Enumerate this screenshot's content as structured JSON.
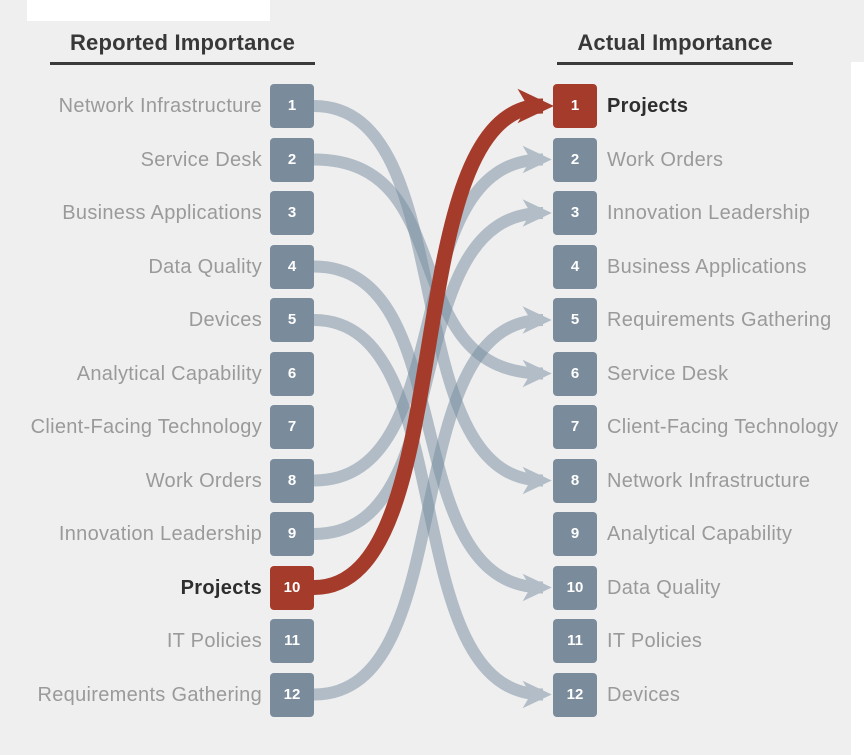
{
  "header": {
    "left_title": "Reported Importance",
    "right_title": "Actual Importance"
  },
  "left_items": [
    {
      "rank": "1",
      "label": "Network Infrastructure",
      "highlight": false
    },
    {
      "rank": "2",
      "label": "Service Desk",
      "highlight": false
    },
    {
      "rank": "3",
      "label": "Business Applications",
      "highlight": false
    },
    {
      "rank": "4",
      "label": "Data Quality",
      "highlight": false
    },
    {
      "rank": "5",
      "label": "Devices",
      "highlight": false
    },
    {
      "rank": "6",
      "label": "Analytical Capability",
      "highlight": false
    },
    {
      "rank": "7",
      "label": "Client-Facing Technology",
      "highlight": false
    },
    {
      "rank": "8",
      "label": "Work Orders",
      "highlight": false
    },
    {
      "rank": "9",
      "label": "Innovation Leadership",
      "highlight": false
    },
    {
      "rank": "10",
      "label": "Projects",
      "highlight": true
    },
    {
      "rank": "11",
      "label": "IT Policies",
      "highlight": false
    },
    {
      "rank": "12",
      "label": "Requirements Gathering",
      "highlight": false
    }
  ],
  "right_items": [
    {
      "rank": "1",
      "label": "Projects",
      "highlight": true
    },
    {
      "rank": "2",
      "label": "Work Orders",
      "highlight": false
    },
    {
      "rank": "3",
      "label": "Innovation Leadership",
      "highlight": false
    },
    {
      "rank": "4",
      "label": "Business Applications",
      "highlight": false
    },
    {
      "rank": "5",
      "label": "Requirements Gathering",
      "highlight": false
    },
    {
      "rank": "6",
      "label": "Service Desk",
      "highlight": false
    },
    {
      "rank": "7",
      "label": "Client-Facing Technology",
      "highlight": false
    },
    {
      "rank": "8",
      "label": "Network Infrastructure",
      "highlight": false
    },
    {
      "rank": "9",
      "label": "Analytical Capability",
      "highlight": false
    },
    {
      "rank": "10",
      "label": "Data Quality",
      "highlight": false
    },
    {
      "rank": "11",
      "label": "IT Policies",
      "highlight": false
    },
    {
      "rank": "12",
      "label": "Devices",
      "highlight": false
    }
  ],
  "connections": [
    {
      "from_rank": 1,
      "to_rank": 8,
      "highlight": false
    },
    {
      "from_rank": 2,
      "to_rank": 6,
      "highlight": false
    },
    {
      "from_rank": 4,
      "to_rank": 10,
      "highlight": false
    },
    {
      "from_rank": 5,
      "to_rank": 12,
      "highlight": false
    },
    {
      "from_rank": 8,
      "to_rank": 2,
      "highlight": false
    },
    {
      "from_rank": 9,
      "to_rank": 3,
      "highlight": false
    },
    {
      "from_rank": 12,
      "to_rank": 5,
      "highlight": false
    },
    {
      "from_rank": 10,
      "to_rank": 1,
      "highlight": true
    }
  ],
  "chart_data": {
    "type": "table",
    "subtype": "slopegraph-arrow-chart",
    "title_left": "Reported Importance",
    "title_right": "Actual Importance",
    "columns": [
      "Item",
      "Reported Rank",
      "Actual Rank"
    ],
    "rows": [
      [
        "Network Infrastructure",
        1,
        8
      ],
      [
        "Service Desk",
        2,
        6
      ],
      [
        "Business Applications",
        3,
        4
      ],
      [
        "Data Quality",
        4,
        10
      ],
      [
        "Devices",
        5,
        12
      ],
      [
        "Analytical Capability",
        6,
        9
      ],
      [
        "Client-Facing Technology",
        7,
        7
      ],
      [
        "Work Orders",
        8,
        2
      ],
      [
        "Innovation Leadership",
        9,
        3
      ],
      [
        "Projects",
        10,
        1
      ],
      [
        "IT Policies",
        11,
        11
      ],
      [
        "Requirements Gathering",
        12,
        5
      ]
    ],
    "highlighted_item": "Projects",
    "arrows_drawn_for": [
      "Network Infrastructure",
      "Service Desk",
      "Data Quality",
      "Devices",
      "Work Orders",
      "Innovation Leadership",
      "Requirements Gathering",
      "Projects"
    ]
  },
  "colors": {
    "background": "#efefef",
    "box": "#7a8b9b",
    "box_highlight": "#a53c2b",
    "connector": "rgba(116,138,158,0.5)",
    "connector_head": "#b2bdc7",
    "connector_highlight": "#a53c2b",
    "label": "#9a9a9a",
    "label_highlight": "#2e2e2e",
    "title": "#383838",
    "underline": "#3a3a3a",
    "rank_text": "#ffffff",
    "overlay": "#ffffff"
  }
}
